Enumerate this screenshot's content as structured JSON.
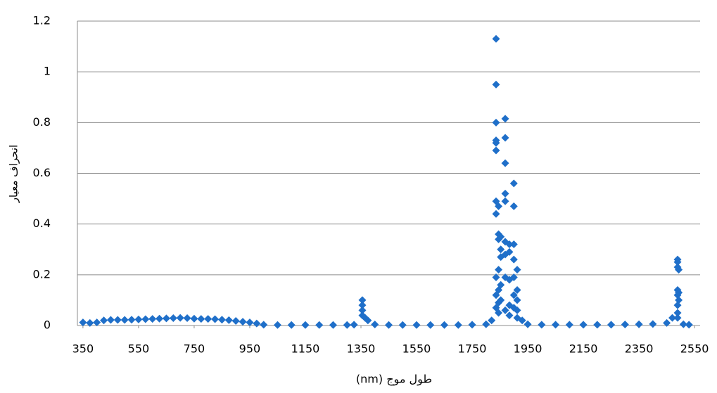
{
  "chart_data": {
    "type": "scatter",
    "x_label": "طول موج (nm)",
    "y_label": "انحراف معیار",
    "color": "#1f6fc9",
    "grid": true,
    "xlim": [
      330,
      2570
    ],
    "xticks": [
      350,
      550,
      750,
      950,
      1150,
      1350,
      1550,
      1750,
      1950,
      2150,
      2350,
      2550
    ],
    "ylim": [
      0,
      1.2
    ],
    "yticks": [
      0,
      0.2,
      0.4,
      0.6,
      0.8,
      1,
      1.2
    ],
    "x": [
      350,
      375,
      400,
      425,
      450,
      475,
      500,
      525,
      550,
      575,
      600,
      625,
      650,
      675,
      700,
      725,
      750,
      775,
      800,
      825,
      850,
      875,
      900,
      925,
      950,
      975,
      1000,
      1050,
      1100,
      1150,
      1200,
      1250,
      1300,
      1325,
      1355,
      1355,
      1355,
      1355,
      1365,
      1375,
      1400,
      1450,
      1500,
      1550,
      1600,
      1650,
      1700,
      1750,
      1800,
      1820,
      1836,
      1836,
      1836,
      1836,
      1836,
      1836,
      1836,
      1836,
      1836,
      1836,
      1836,
      1845,
      1845,
      1845,
      1845,
      1845,
      1845,
      1845,
      1853,
      1853,
      1853,
      1853,
      1853,
      1869,
      1869,
      1869,
      1869,
      1869,
      1869,
      1869,
      1869,
      1869,
      1884,
      1884,
      1884,
      1884,
      1884,
      1900,
      1900,
      1900,
      1900,
      1900,
      1900,
      1900,
      1912,
      1912,
      1912,
      1912,
      1912,
      1930,
      1950,
      2000,
      2050,
      2100,
      2150,
      2200,
      2250,
      2300,
      2350,
      2400,
      2450,
      2470,
      2489,
      2489,
      2489,
      2489,
      2489,
      2489,
      2489,
      2489,
      2493,
      2493,
      2493,
      2510,
      2530
    ],
    "values": [
      0.012,
      0.01,
      0.012,
      0.02,
      0.022,
      0.022,
      0.022,
      0.023,
      0.024,
      0.025,
      0.026,
      0.027,
      0.028,
      0.029,
      0.03,
      0.029,
      0.027,
      0.026,
      0.026,
      0.025,
      0.023,
      0.021,
      0.018,
      0.015,
      0.012,
      0.008,
      0.003,
      0.002,
      0.002,
      0.002,
      0.002,
      0.002,
      0.002,
      0.003,
      0.1,
      0.08,
      0.06,
      0.04,
      0.03,
      0.02,
      0.004,
      0.002,
      0.002,
      0.002,
      0.002,
      0.002,
      0.002,
      0.003,
      0.005,
      0.02,
      1.13,
      0.95,
      0.8,
      0.73,
      0.72,
      0.69,
      0.49,
      0.44,
      0.19,
      0.12,
      0.07,
      0.47,
      0.36,
      0.34,
      0.22,
      0.14,
      0.09,
      0.05,
      0.35,
      0.3,
      0.27,
      0.16,
      0.1,
      0.815,
      0.74,
      0.64,
      0.52,
      0.49,
      0.33,
      0.28,
      0.19,
      0.06,
      0.32,
      0.29,
      0.18,
      0.08,
      0.04,
      0.56,
      0.47,
      0.32,
      0.26,
      0.19,
      0.12,
      0.07,
      0.22,
      0.14,
      0.1,
      0.06,
      0.03,
      0.02,
      0.005,
      0.003,
      0.003,
      0.003,
      0.003,
      0.003,
      0.003,
      0.004,
      0.005,
      0.006,
      0.01,
      0.03,
      0.26,
      0.25,
      0.23,
      0.14,
      0.12,
      0.08,
      0.05,
      0.03,
      0.22,
      0.13,
      0.1,
      0.005,
      0.003
    ]
  }
}
